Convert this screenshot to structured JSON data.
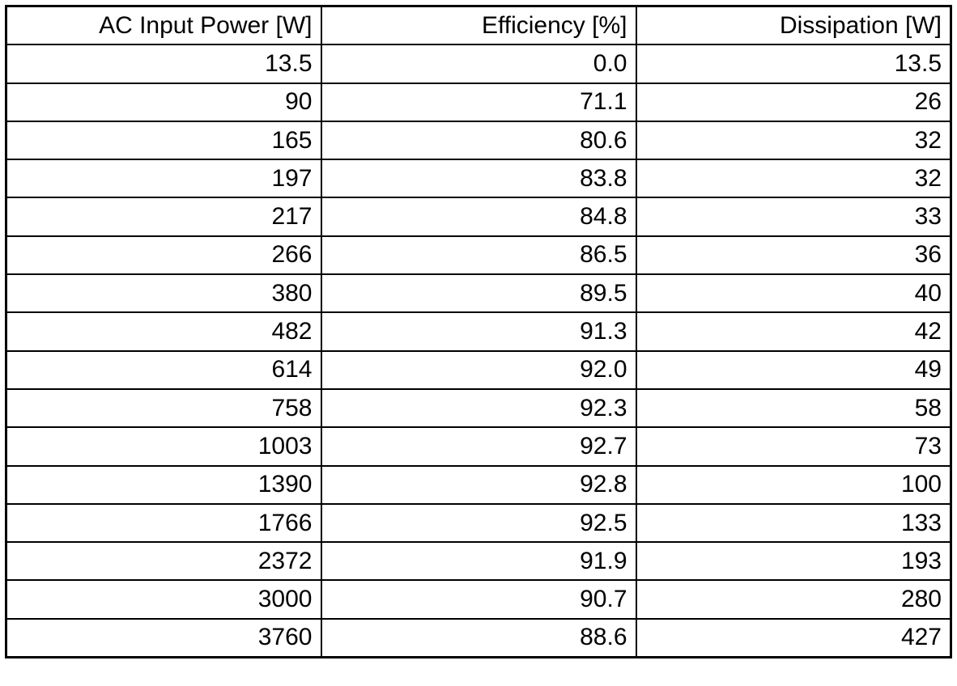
{
  "colors": {
    "border": "#000000",
    "text": "#000000",
    "background": "#ffffff"
  },
  "table": {
    "columns": [
      "AC Input Power [W]",
      "Efficiency [%]",
      "Dissipation [W]"
    ],
    "rows": [
      [
        "13.5",
        "0.0",
        "13.5"
      ],
      [
        "90",
        "71.1",
        "26"
      ],
      [
        "165",
        "80.6",
        "32"
      ],
      [
        "197",
        "83.8",
        "32"
      ],
      [
        "217",
        "84.8",
        "33"
      ],
      [
        "266",
        "86.5",
        "36"
      ],
      [
        "380",
        "89.5",
        "40"
      ],
      [
        "482",
        "91.3",
        "42"
      ],
      [
        "614",
        "92.0",
        "49"
      ],
      [
        "758",
        "92.3",
        "58"
      ],
      [
        "1003",
        "92.7",
        "73"
      ],
      [
        "1390",
        "92.8",
        "100"
      ],
      [
        "1766",
        "92.5",
        "133"
      ],
      [
        "2372",
        "91.9",
        "193"
      ],
      [
        "3000",
        "90.7",
        "280"
      ],
      [
        "3760",
        "88.6",
        "427"
      ]
    ]
  },
  "chart_data": {
    "type": "table",
    "title": "",
    "columns": [
      "AC Input Power [W]",
      "Efficiency [%]",
      "Dissipation [W]"
    ],
    "rows": [
      [
        13.5,
        0.0,
        13.5
      ],
      [
        90,
        71.1,
        26
      ],
      [
        165,
        80.6,
        32
      ],
      [
        197,
        83.8,
        32
      ],
      [
        217,
        84.8,
        33
      ],
      [
        266,
        86.5,
        36
      ],
      [
        380,
        89.5,
        40
      ],
      [
        482,
        91.3,
        42
      ],
      [
        614,
        92.0,
        49
      ],
      [
        758,
        92.3,
        58
      ],
      [
        1003,
        92.7,
        73
      ],
      [
        1390,
        92.8,
        100
      ],
      [
        1766,
        92.5,
        133
      ],
      [
        2372,
        91.9,
        193
      ],
      [
        3000,
        90.7,
        280
      ],
      [
        3760,
        88.6,
        427
      ]
    ]
  }
}
